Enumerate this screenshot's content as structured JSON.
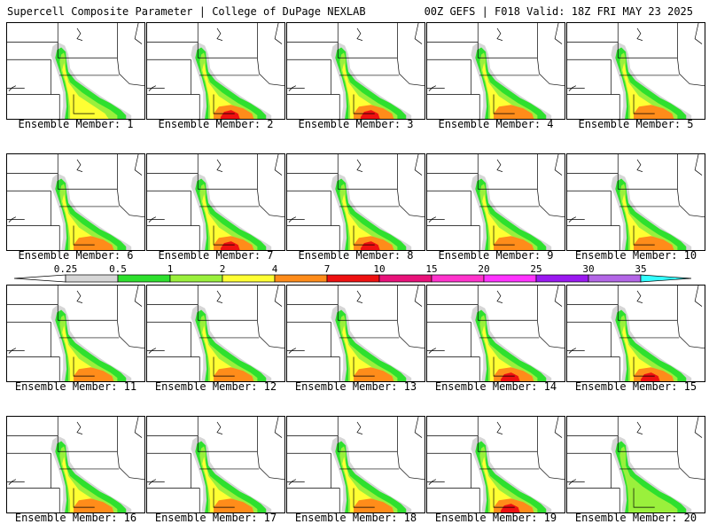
{
  "header": {
    "left": "Supercell Composite Parameter | College of DuPage NEXLAB",
    "right": "00Z GEFS | F018 Valid: 18Z FRI MAY 23 2025"
  },
  "panel_label_prefix": "Ensemble Member: ",
  "members": [
    {
      "id": "1",
      "label": "Ensemble Member: 1",
      "max_level": 3
    },
    {
      "id": "2",
      "label": "Ensemble Member: 2",
      "max_level": 6
    },
    {
      "id": "3",
      "label": "Ensemble Member: 3",
      "max_level": 6
    },
    {
      "id": "4",
      "label": "Ensemble Member: 4",
      "max_level": 4
    },
    {
      "id": "5",
      "label": "Ensemble Member: 5",
      "max_level": 4
    },
    {
      "id": "6",
      "label": "Ensemble Member: 6",
      "max_level": 4
    },
    {
      "id": "7",
      "label": "Ensemble Member: 7",
      "max_level": 6
    },
    {
      "id": "8",
      "label": "Ensemble Member: 8",
      "max_level": 6
    },
    {
      "id": "9",
      "label": "Ensemble Member: 9",
      "max_level": 4
    },
    {
      "id": "10",
      "label": "Ensemble Member: 10",
      "max_level": 4
    },
    {
      "id": "11",
      "label": "Ensemble Member: 11",
      "max_level": 4
    },
    {
      "id": "12",
      "label": "Ensemble Member: 12",
      "max_level": 4
    },
    {
      "id": "13",
      "label": "Ensemble Member: 13",
      "max_level": 4
    },
    {
      "id": "14",
      "label": "Ensemble Member: 14",
      "max_level": 6
    },
    {
      "id": "15",
      "label": "Ensemble Member: 15",
      "max_level": 6
    },
    {
      "id": "16",
      "label": "Ensemble Member: 16",
      "max_level": 4
    },
    {
      "id": "17",
      "label": "Ensemble Member: 17",
      "max_level": 4
    },
    {
      "id": "18",
      "label": "Ensemble Member: 18",
      "max_level": 4
    },
    {
      "id": "19",
      "label": "Ensemble Member: 19",
      "max_level": 6
    },
    {
      "id": "20",
      "label": "Ensemble Member: 20",
      "max_level": 2
    }
  ],
  "colorbar": {
    "labels": [
      "0.25",
      "0.5",
      "1",
      "2",
      "4",
      "7",
      "10",
      "15",
      "20",
      "25",
      "30",
      "35"
    ],
    "colors": [
      "#d6d6d6",
      "#2ee02e",
      "#9af03c",
      "#ffff33",
      "#ff8c1a",
      "#ee1111",
      "#e8127a",
      "#ff33cc",
      "#ff33ff",
      "#9a19f0",
      "#b366e6",
      "#33ffff"
    ]
  }
}
